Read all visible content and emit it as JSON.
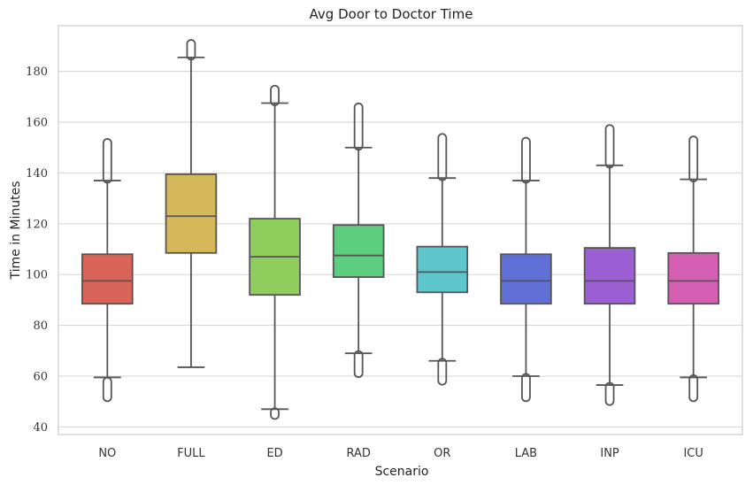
{
  "chart_data": {
    "type": "box",
    "title": "Avg Door to Doctor Time",
    "xlabel": "Scenario",
    "ylabel": "Time in Minutes",
    "ylim": [
      37,
      198
    ],
    "yticks": [
      40,
      60,
      80,
      100,
      120,
      140,
      160,
      180
    ],
    "grid": true,
    "categories": [
      "NO",
      "FULL",
      "ED",
      "RAD",
      "OR",
      "LAB",
      "INP",
      "ICU"
    ],
    "colors": [
      "#d9645a",
      "#d4b85a",
      "#8fce5d",
      "#5dcd7e",
      "#5fc5cc",
      "#6170d6",
      "#9d5fd4",
      "#d55fb3"
    ],
    "boxes": [
      {
        "name": "NO",
        "whislo": 59.5,
        "q1": 88.5,
        "med": 97.5,
        "q3": 108.0,
        "whishi": 137.0,
        "fliers_low": [
          51.5,
          58.0
        ],
        "fliers_high": [
          137.5,
          152.0
        ]
      },
      {
        "name": "FULL",
        "whislo": 63.5,
        "q1": 108.5,
        "med": 123.0,
        "q3": 139.5,
        "whishi": 185.5,
        "fliers_low": [],
        "fliers_high": [
          186.0,
          191.0
        ]
      },
      {
        "name": "ED",
        "whislo": 47.0,
        "q1": 92.0,
        "med": 107.0,
        "q3": 122.0,
        "whishi": 167.5,
        "fliers_low": [
          44.5,
          46.0
        ],
        "fliers_high": [
          168.0,
          173.0
        ]
      },
      {
        "name": "RAD",
        "whislo": 69.0,
        "q1": 99.0,
        "med": 107.5,
        "q3": 119.5,
        "whishi": 150.0,
        "fliers_low": [
          61.0,
          68.5
        ],
        "fliers_high": [
          150.5,
          166.0
        ]
      },
      {
        "name": "OR",
        "whislo": 66.0,
        "q1": 93.0,
        "med": 101.0,
        "q3": 111.0,
        "whishi": 138.0,
        "fliers_low": [
          58.0,
          65.5
        ],
        "fliers_high": [
          138.5,
          154.0
        ]
      },
      {
        "name": "LAB",
        "whislo": 60.0,
        "q1": 88.5,
        "med": 97.5,
        "q3": 108.0,
        "whishi": 137.0,
        "fliers_low": [
          51.5,
          59.5
        ],
        "fliers_high": [
          137.5,
          152.5
        ]
      },
      {
        "name": "INP",
        "whislo": 56.5,
        "q1": 88.5,
        "med": 97.5,
        "q3": 110.5,
        "whishi": 143.0,
        "fliers_low": [
          50.0,
          56.0
        ],
        "fliers_high": [
          143.5,
          157.5
        ]
      },
      {
        "name": "ICU",
        "whislo": 59.5,
        "q1": 88.5,
        "med": 97.5,
        "q3": 108.5,
        "whishi": 137.5,
        "fliers_low": [
          51.5,
          59.0
        ],
        "fliers_high": [
          138.0,
          153.0
        ]
      }
    ]
  }
}
